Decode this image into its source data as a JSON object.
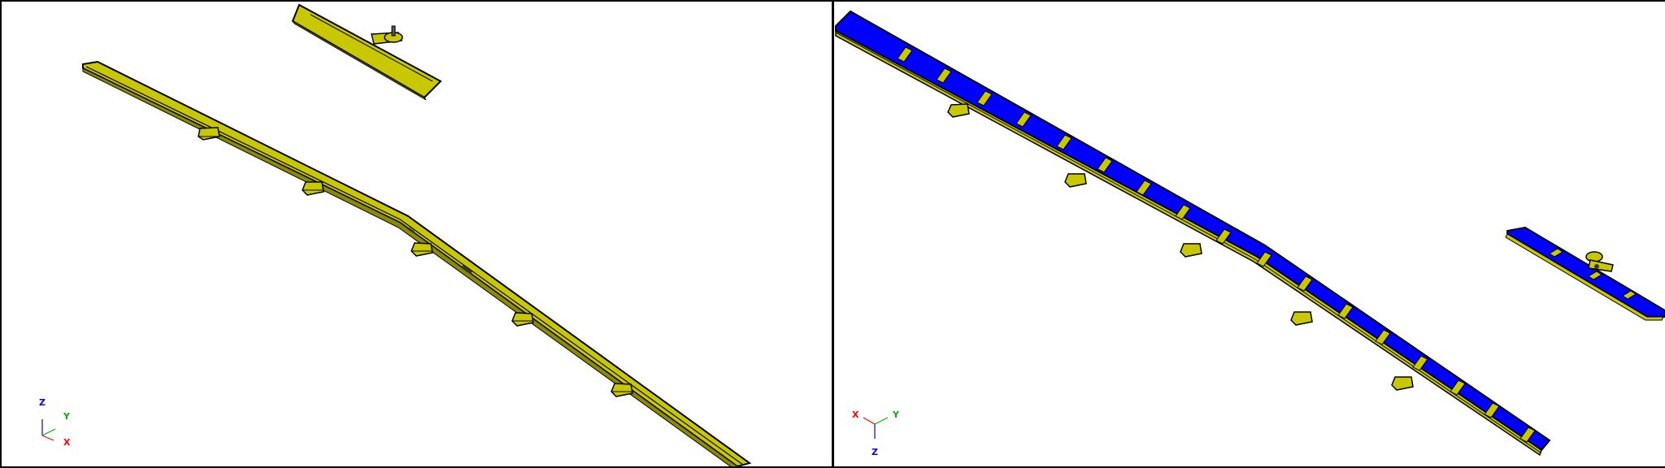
{
  "viewports": [
    {
      "name": "left",
      "axis_triad": {
        "x_label": "X",
        "y_label": "Y",
        "z_label": "Z"
      }
    },
    {
      "name": "right",
      "axis_triad": {
        "x_label": "X",
        "y_label": "Y",
        "z_label": "Z"
      }
    }
  ],
  "colors": {
    "part_yellow": "#c9c800",
    "part_yellow_dark": "#8c8a00",
    "part_blue": "#0000ff",
    "outline": "#000000",
    "axis_x": "#ff0000",
    "axis_y": "#00b400",
    "axis_z": "#0000ff",
    "background": "#ffffff"
  }
}
